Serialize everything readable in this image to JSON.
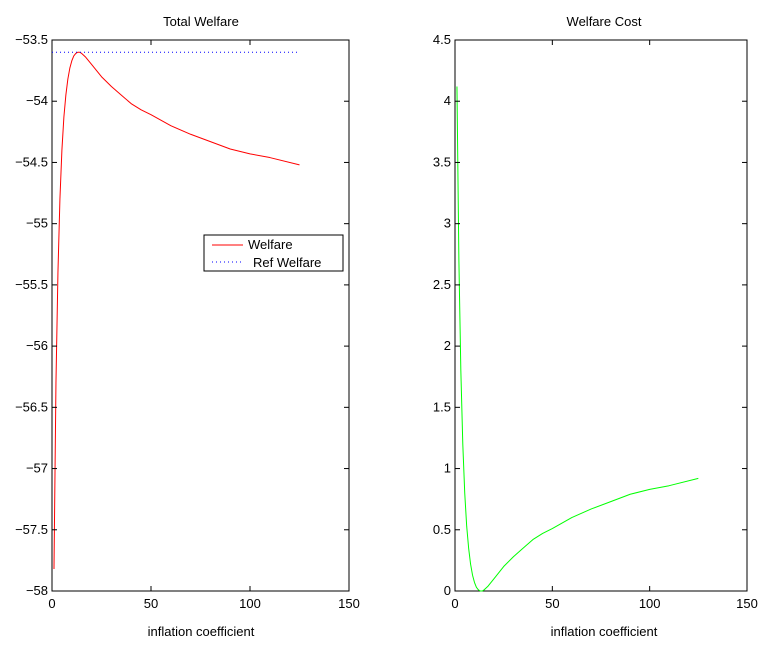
{
  "chart_data": [
    {
      "type": "line",
      "title": "Total Welfare",
      "xlabel": "inflation coefficient",
      "ylabel": "",
      "xlim": [
        0,
        150
      ],
      "ylim": [
        -58,
        -53.5
      ],
      "xticks": [
        0,
        50,
        100,
        150
      ],
      "xtick_labels": [
        "0",
        "50",
        "100",
        "150"
      ],
      "yticks": [
        -58,
        -57.5,
        -57,
        -56.5,
        -56,
        -55.5,
        -55,
        -54.5,
        -54,
        -53.5
      ],
      "ytick_labels": [
        "−58",
        "−57.5",
        "−57",
        "−56.5",
        "−56",
        "−55.5",
        "−55",
        "−54.5",
        "−54",
        "−53.5"
      ],
      "grid": false,
      "legend": {
        "placement": "center-right",
        "entries": [
          "Welfare",
          "Ref Welfare"
        ]
      },
      "series": [
        {
          "name": "Welfare",
          "color": "#ff0000",
          "style": "solid",
          "x": [
            1,
            2,
            3,
            4,
            5,
            6,
            7,
            8,
            9,
            10,
            11,
            12,
            13,
            14,
            15,
            17,
            20,
            25,
            30,
            35,
            40,
            45,
            50,
            60,
            70,
            80,
            90,
            100,
            110,
            125
          ],
          "y": [
            -57.82,
            -56.3,
            -55.4,
            -54.8,
            -54.4,
            -54.13,
            -53.95,
            -53.82,
            -53.73,
            -53.67,
            -53.63,
            -53.61,
            -53.6,
            -53.6,
            -53.61,
            -53.64,
            -53.7,
            -53.8,
            -53.88,
            -53.95,
            -54.02,
            -54.07,
            -54.11,
            -54.2,
            -54.27,
            -54.33,
            -54.39,
            -54.43,
            -54.46,
            -54.52
          ]
        },
        {
          "name": "Ref Welfare",
          "color": "#0000ff",
          "style": "dotted",
          "x": [
            0,
            125
          ],
          "y": [
            -53.6,
            -53.6
          ]
        }
      ]
    },
    {
      "type": "line",
      "title": "Welfare Cost",
      "xlabel": "inflation coefficient",
      "ylabel": "",
      "xlim": [
        0,
        150
      ],
      "ylim": [
        0,
        4.5
      ],
      "xticks": [
        0,
        50,
        100,
        150
      ],
      "xtick_labels": [
        "0",
        "50",
        "100",
        "150"
      ],
      "yticks": [
        0,
        0.5,
        1,
        1.5,
        2,
        2.5,
        3,
        3.5,
        4,
        4.5
      ],
      "ytick_labels": [
        "0",
        "0.5",
        "1",
        "1.5",
        "2",
        "2.5",
        "3",
        "3.5",
        "4",
        "4.5"
      ],
      "grid": false,
      "legend": null,
      "series": [
        {
          "color": "#00ff00",
          "style": "solid",
          "x": [
            1,
            2,
            3,
            4,
            5,
            6,
            7,
            8,
            9,
            10,
            11,
            12,
            13,
            14,
            15,
            17,
            20,
            25,
            30,
            35,
            40,
            45,
            50,
            60,
            70,
            80,
            90,
            100,
            110,
            125
          ],
          "y": [
            4.12,
            2.7,
            1.8,
            1.2,
            0.8,
            0.53,
            0.35,
            0.22,
            0.13,
            0.07,
            0.03,
            0.01,
            0.0,
            0.0,
            0.01,
            0.04,
            0.1,
            0.2,
            0.28,
            0.35,
            0.42,
            0.47,
            0.51,
            0.6,
            0.67,
            0.73,
            0.79,
            0.83,
            0.86,
            0.92
          ]
        }
      ]
    }
  ]
}
